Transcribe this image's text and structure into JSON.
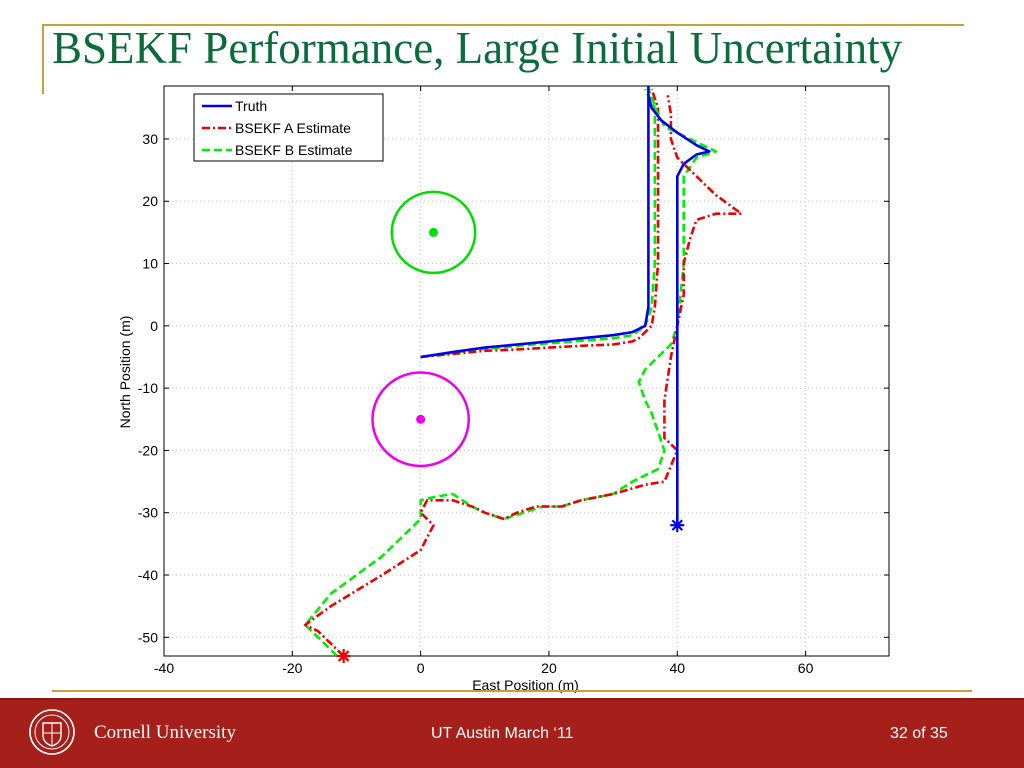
{
  "slide": {
    "title": "BSEKF Performance, Large Initial Uncertainty"
  },
  "footer": {
    "university": "Cornell University",
    "center_text": "UT Austin March ‘11",
    "slide_number": "32 of 35"
  },
  "colors": {
    "title": "#0b6b3a",
    "rule": "#c8a040",
    "footer_bg": "#a51f1b",
    "truth": "#0000ee",
    "estimate_a": "#ee0000",
    "estimate_b": "#00ee00",
    "circle_green": "#00dd00",
    "circle_magenta": "#ee00ee"
  },
  "chart_data": {
    "type": "line",
    "title": "",
    "xlabel": "East Position (m)",
    "ylabel": "North Position (m)",
    "xlim": [
      -40,
      73
    ],
    "ylim": [
      -53,
      38.5
    ],
    "xticks": [
      -40,
      -20,
      0,
      20,
      40,
      60
    ],
    "yticks": [
      -50,
      -40,
      -30,
      -20,
      -10,
      0,
      10,
      20,
      30
    ],
    "grid": true,
    "legend_position": "top-left",
    "series": [
      {
        "name": "Truth",
        "style": "solid",
        "color": "#0000ee",
        "points": [
          [
            40,
            -32
          ],
          [
            40,
            -20
          ],
          [
            40,
            -5
          ],
          [
            40,
            5
          ],
          [
            40,
            15
          ],
          [
            40,
            24
          ],
          [
            41,
            26
          ],
          [
            43,
            27.5
          ],
          [
            45,
            28
          ],
          [
            43,
            29
          ],
          [
            40,
            31
          ],
          [
            37.5,
            33
          ],
          [
            36,
            35
          ],
          [
            35.5,
            37
          ],
          [
            35.5,
            38.5
          ],
          [
            35.5,
            30
          ],
          [
            35.5,
            20
          ],
          [
            35.5,
            10
          ],
          [
            35.5,
            3
          ],
          [
            35,
            0
          ],
          [
            33,
            -1
          ],
          [
            30,
            -1.5
          ],
          [
            25,
            -2
          ],
          [
            20,
            -2.5
          ],
          [
            15,
            -3
          ],
          [
            10,
            -3.5
          ],
          [
            5,
            -4.2
          ],
          [
            0,
            -5
          ]
        ]
      },
      {
        "name": "BSEKF A Estimate",
        "style": "dashdot",
        "color": "#ee0000",
        "points": [
          [
            -12,
            -53
          ],
          [
            -16,
            -49
          ],
          [
            -18,
            -48
          ],
          [
            -14,
            -45
          ],
          [
            -6,
            -40
          ],
          [
            0,
            -36
          ],
          [
            2,
            -32
          ],
          [
            0,
            -30
          ],
          [
            1,
            -28
          ],
          [
            5,
            -28
          ],
          [
            8,
            -29
          ],
          [
            10,
            -30
          ],
          [
            13,
            -31
          ],
          [
            15,
            -30
          ],
          [
            18,
            -29
          ],
          [
            22,
            -29
          ],
          [
            25,
            -28
          ],
          [
            30,
            -27
          ],
          [
            35,
            -25.5
          ],
          [
            38,
            -25
          ],
          [
            40,
            -20
          ],
          [
            38,
            -18
          ],
          [
            38,
            -12
          ],
          [
            39,
            -5
          ],
          [
            40,
            0
          ],
          [
            41,
            5
          ],
          [
            41,
            10
          ],
          [
            42,
            14
          ],
          [
            43,
            17
          ],
          [
            46,
            18
          ],
          [
            50,
            18
          ],
          [
            46,
            21
          ],
          [
            44,
            23
          ],
          [
            42,
            25
          ],
          [
            40,
            27
          ],
          [
            39,
            30
          ],
          [
            39,
            34
          ],
          [
            38.5,
            37
          ]
        ]
      },
      {
        "name": "BSEKF B Estimate",
        "style": "dashed",
        "color": "#00ee00",
        "points": [
          [
            -13,
            -53
          ],
          [
            -16,
            -50
          ],
          [
            -18,
            -48
          ],
          [
            -14,
            -43
          ],
          [
            -6,
            -37
          ],
          [
            0,
            -31
          ],
          [
            0,
            -28
          ],
          [
            2,
            -27.5
          ],
          [
            5,
            -27
          ],
          [
            8,
            -29
          ],
          [
            10,
            -30
          ],
          [
            13,
            -31
          ],
          [
            16,
            -30
          ],
          [
            19,
            -29
          ],
          [
            22,
            -29
          ],
          [
            25,
            -28
          ],
          [
            30,
            -27
          ],
          [
            33,
            -25
          ],
          [
            37,
            -23
          ],
          [
            38,
            -20
          ],
          [
            37,
            -17
          ],
          [
            36,
            -14
          ],
          [
            35,
            -12
          ],
          [
            34,
            -9
          ],
          [
            35,
            -7
          ],
          [
            37,
            -5
          ],
          [
            39,
            -3
          ],
          [
            40,
            0
          ],
          [
            40.5,
            5
          ],
          [
            41,
            10
          ],
          [
            41,
            15
          ],
          [
            41,
            20
          ],
          [
            41,
            24
          ],
          [
            43,
            27
          ],
          [
            46,
            28
          ],
          [
            43,
            29.5
          ],
          [
            40,
            31
          ],
          [
            38,
            32
          ],
          [
            37,
            34
          ],
          [
            35.5,
            38
          ]
        ]
      },
      {
        "name": "",
        "style": "dashdot",
        "color": "#ee0000",
        "points": [
          [
            0,
            -5
          ],
          [
            5,
            -4.5
          ],
          [
            10,
            -4
          ],
          [
            15,
            -3.8
          ],
          [
            20,
            -3.5
          ],
          [
            25,
            -3.2
          ],
          [
            30,
            -3
          ],
          [
            33,
            -2.5
          ],
          [
            34,
            -2
          ],
          [
            35,
            -1
          ],
          [
            36,
            0
          ],
          [
            36.5,
            3
          ],
          [
            37,
            10
          ],
          [
            37,
            20
          ],
          [
            37,
            30
          ],
          [
            37,
            35
          ],
          [
            36,
            38
          ]
        ]
      },
      {
        "name": "",
        "style": "dashed",
        "color": "#00ee00",
        "points": [
          [
            0,
            -5
          ],
          [
            5,
            -4.3
          ],
          [
            10,
            -3.7
          ],
          [
            15,
            -3.2
          ],
          [
            20,
            -2.8
          ],
          [
            25,
            -2.4
          ],
          [
            30,
            -2
          ],
          [
            33,
            -1.5
          ],
          [
            35,
            0
          ],
          [
            36,
            3
          ],
          [
            36.5,
            10
          ],
          [
            36.5,
            20
          ],
          [
            36.5,
            30
          ],
          [
            36.5,
            35
          ],
          [
            35,
            38
          ]
        ]
      }
    ],
    "markers": [
      {
        "x": 40,
        "y": -32,
        "symbol": "asterisk",
        "color": "#0000ee"
      },
      {
        "x": -12,
        "y": -53,
        "symbol": "asterisk",
        "color": "#ee0000"
      },
      {
        "x": 2,
        "y": 15,
        "symbol": "dot",
        "color": "#00dd00"
      },
      {
        "x": 0,
        "y": -15,
        "symbol": "dot",
        "color": "#ee00ee"
      }
    ],
    "circles": [
      {
        "cx": 2,
        "cy": 15,
        "r": 6.5,
        "color": "#00dd00"
      },
      {
        "cx": 0,
        "cy": -15,
        "r": 7.5,
        "color": "#ee00ee"
      }
    ]
  }
}
